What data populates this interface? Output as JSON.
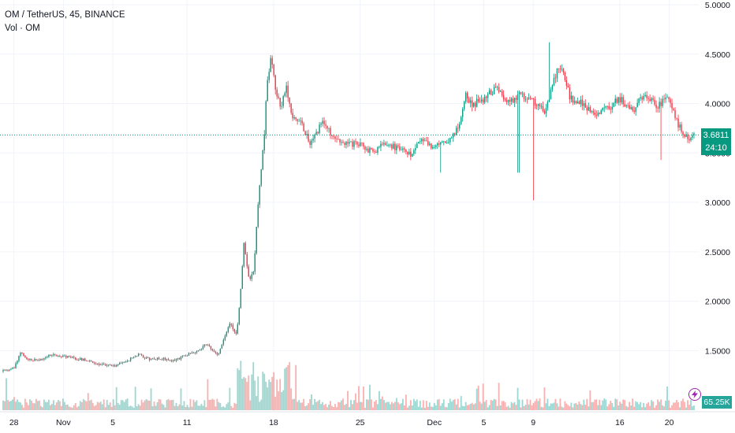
{
  "legend": {
    "symbol_line": "OM / TetherUS, 45, BINANCE",
    "volume_line": "Vol · OM"
  },
  "last_price": {
    "label": "3.6811",
    "countdown": "24:10",
    "value": 3.6811,
    "color": "#089981"
  },
  "volume_badge": {
    "label": "65.25K",
    "color": "#26a69a"
  },
  "icons": {
    "lightning": "lightning-bolt-icon"
  },
  "colors": {
    "up": "#089981",
    "down": "#f23645",
    "vol_up": "#26a69a",
    "vol_down": "#ef5350",
    "grid": "#f0f3fa"
  },
  "chart_data": {
    "type": "candlestick",
    "symbol": "OM / TetherUS",
    "interval": "45",
    "exchange": "BINANCE",
    "y_ticks": [
      "5.0000",
      "4.5000",
      "4.0000",
      "3.5000",
      "3.0000",
      "2.5000",
      "2.0000",
      "1.5000"
    ],
    "y_range": [
      1.2,
      5.0
    ],
    "x_ticks": [
      "28",
      "Nov",
      "5",
      "11",
      "18",
      "25",
      "Dec",
      "5",
      "9",
      "16",
      "20"
    ],
    "x_domain_days": [
      0,
      56
    ],
    "x_tick_days": [
      1,
      5,
      9,
      15,
      22,
      29,
      35,
      39,
      43,
      50,
      54
    ],
    "price_path": [
      [
        0,
        1.29
      ],
      [
        1,
        1.32
      ],
      [
        1.5,
        1.48
      ],
      [
        2,
        1.42
      ],
      [
        3,
        1.4
      ],
      [
        4,
        1.46
      ],
      [
        5,
        1.44
      ],
      [
        6,
        1.42
      ],
      [
        7,
        1.4
      ],
      [
        8,
        1.36
      ],
      [
        9,
        1.34
      ],
      [
        10,
        1.39
      ],
      [
        11,
        1.46
      ],
      [
        12,
        1.41
      ],
      [
        13,
        1.42
      ],
      [
        14,
        1.4
      ],
      [
        15,
        1.46
      ],
      [
        16,
        1.5
      ],
      [
        16.5,
        1.58
      ],
      [
        17,
        1.52
      ],
      [
        17.5,
        1.45
      ],
      [
        18,
        1.62
      ],
      [
        18.5,
        1.79
      ],
      [
        19,
        1.65
      ],
      [
        19.3,
        2.05
      ],
      [
        19.6,
        2.58
      ],
      [
        20,
        2.22
      ],
      [
        20.4,
        2.3
      ],
      [
        20.8,
        3.1
      ],
      [
        21.2,
        3.6
      ],
      [
        21.5,
        4.25
      ],
      [
        21.8,
        4.45
      ],
      [
        22.2,
        4.1
      ],
      [
        22.6,
        3.95
      ],
      [
        23,
        4.2
      ],
      [
        23.5,
        3.88
      ],
      [
        24,
        3.85
      ],
      [
        25,
        3.6
      ],
      [
        26,
        3.82
      ],
      [
        27,
        3.62
      ],
      [
        28,
        3.58
      ],
      [
        29,
        3.6
      ],
      [
        30,
        3.5
      ],
      [
        31,
        3.6
      ],
      [
        32,
        3.55
      ],
      [
        33,
        3.48
      ],
      [
        34,
        3.62
      ],
      [
        35,
        3.55
      ],
      [
        36,
        3.62
      ],
      [
        37,
        3.75
      ],
      [
        37.5,
        4.1
      ],
      [
        38,
        3.98
      ],
      [
        39,
        4.05
      ],
      [
        40,
        4.16
      ],
      [
        41,
        4.0
      ],
      [
        42,
        4.1
      ],
      [
        43,
        4.02
      ],
      [
        44,
        3.92
      ],
      [
        44.5,
        4.15
      ],
      [
        45,
        4.38
      ],
      [
        45.5,
        4.3
      ],
      [
        46,
        4.05
      ],
      [
        47,
        4.0
      ],
      [
        48,
        3.88
      ],
      [
        49,
        3.95
      ],
      [
        50,
        4.05
      ],
      [
        51,
        3.92
      ],
      [
        52,
        4.1
      ],
      [
        53,
        3.98
      ],
      [
        54,
        4.05
      ],
      [
        54.5,
        3.85
      ],
      [
        55,
        3.72
      ],
      [
        55.5,
        3.65
      ],
      [
        56,
        3.6811
      ]
    ],
    "spikes": [
      {
        "day": 43,
        "low": 3.02
      },
      {
        "day": 44.3,
        "high": 4.62
      },
      {
        "day": 41.8,
        "low": 3.3
      },
      {
        "day": 53.3,
        "low": 3.43
      },
      {
        "day": 35.5,
        "low": 3.3
      }
    ]
  }
}
